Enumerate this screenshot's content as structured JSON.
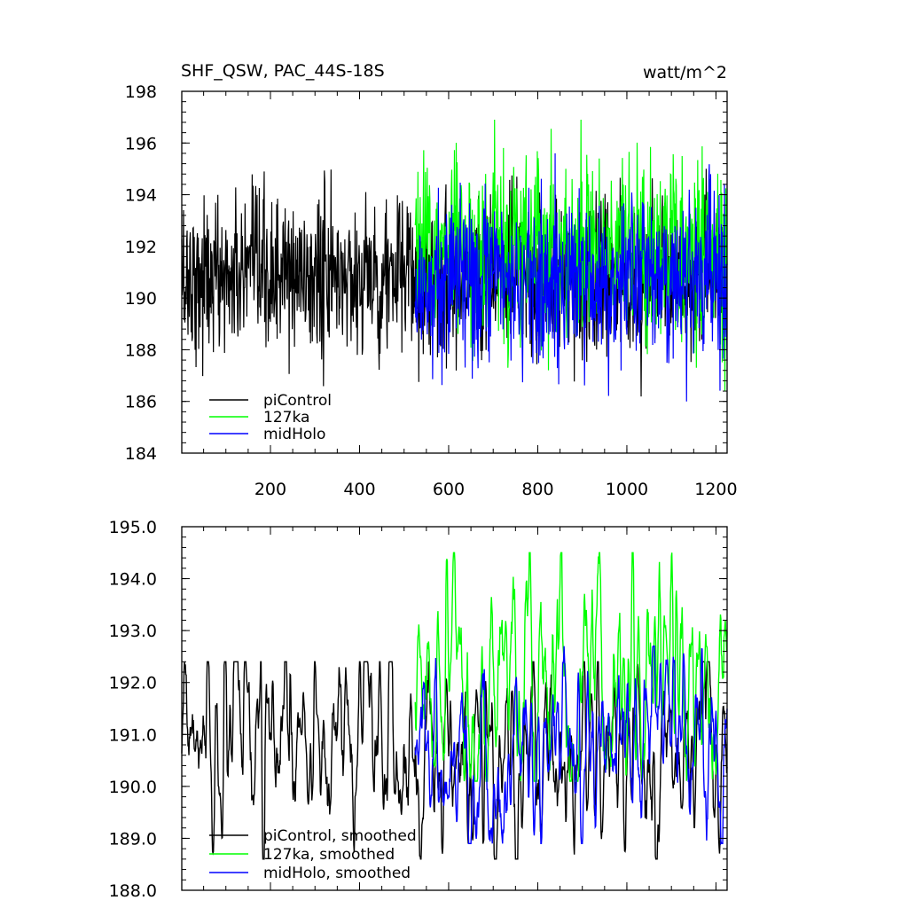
{
  "chart_data": [
    {
      "type": "line",
      "title": "SHF_QSW, PAC_44S-18S",
      "units_label": "watt/m^2",
      "xlim": [
        1,
        1225
      ],
      "ylim": [
        184,
        198
      ],
      "x_ticks": [
        200,
        400,
        600,
        800,
        1000,
        1200
      ],
      "x_tick_labels": [
        "200",
        "400",
        "600",
        "800",
        "1000",
        "1200"
      ],
      "y_ticks": [
        184,
        186,
        188,
        190,
        192,
        194,
        196,
        198
      ],
      "y_tick_labels": [
        "184",
        "186",
        "188",
        "190",
        "192",
        "194",
        "196",
        "198"
      ],
      "legend_location": "bottom-left",
      "grid": false,
      "series": [
        {
          "name": "piControl",
          "color": "#000000",
          "x_start": 1,
          "x_end": 1225,
          "mean": 190.8,
          "std": 1.7,
          "series_min": 185.2,
          "series_max": 195.9
        },
        {
          "name": "127ka",
          "color": "#00ff00",
          "x_start": 525,
          "x_end": 1225,
          "mean": 191.9,
          "std": 2.0,
          "series_min": 185.6,
          "series_max": 196.9
        },
        {
          "name": "midHolo",
          "color": "#0000ff",
          "x_start": 525,
          "x_end": 1225,
          "mean": 190.7,
          "std": 1.8,
          "series_min": 186.0,
          "series_max": 196.1
        }
      ]
    },
    {
      "type": "line",
      "xlim": [
        1,
        1225
      ],
      "ylim": [
        188,
        195
      ],
      "x_ticks": [
        200,
        400,
        600,
        800,
        1000,
        1200
      ],
      "y_ticks": [
        188,
        189,
        190,
        191,
        192,
        193,
        194,
        195
      ],
      "y_tick_labels": [
        "188.0",
        "189.0",
        "190.0",
        "191.0",
        "192.0",
        "193.0",
        "194.0",
        "195.0"
      ],
      "legend_location": "bottom-left",
      "grid": false,
      "series": [
        {
          "name": "piControl, smoothed",
          "color": "#000000",
          "x_start": 1,
          "x_end": 1225,
          "mean": 190.6,
          "std": 0.65,
          "series_min": 188.6,
          "series_max": 192.4
        },
        {
          "name": "127ka, smoothed",
          "color": "#00ff00",
          "x_start": 525,
          "x_end": 1225,
          "mean": 192.0,
          "std": 0.75,
          "series_min": 190.1,
          "series_max": 194.5
        },
        {
          "name": "midHolo, smoothed",
          "color": "#0000ff",
          "x_start": 525,
          "x_end": 1225,
          "mean": 190.7,
          "std": 0.6,
          "series_min": 188.9,
          "series_max": 192.7
        }
      ]
    }
  ]
}
